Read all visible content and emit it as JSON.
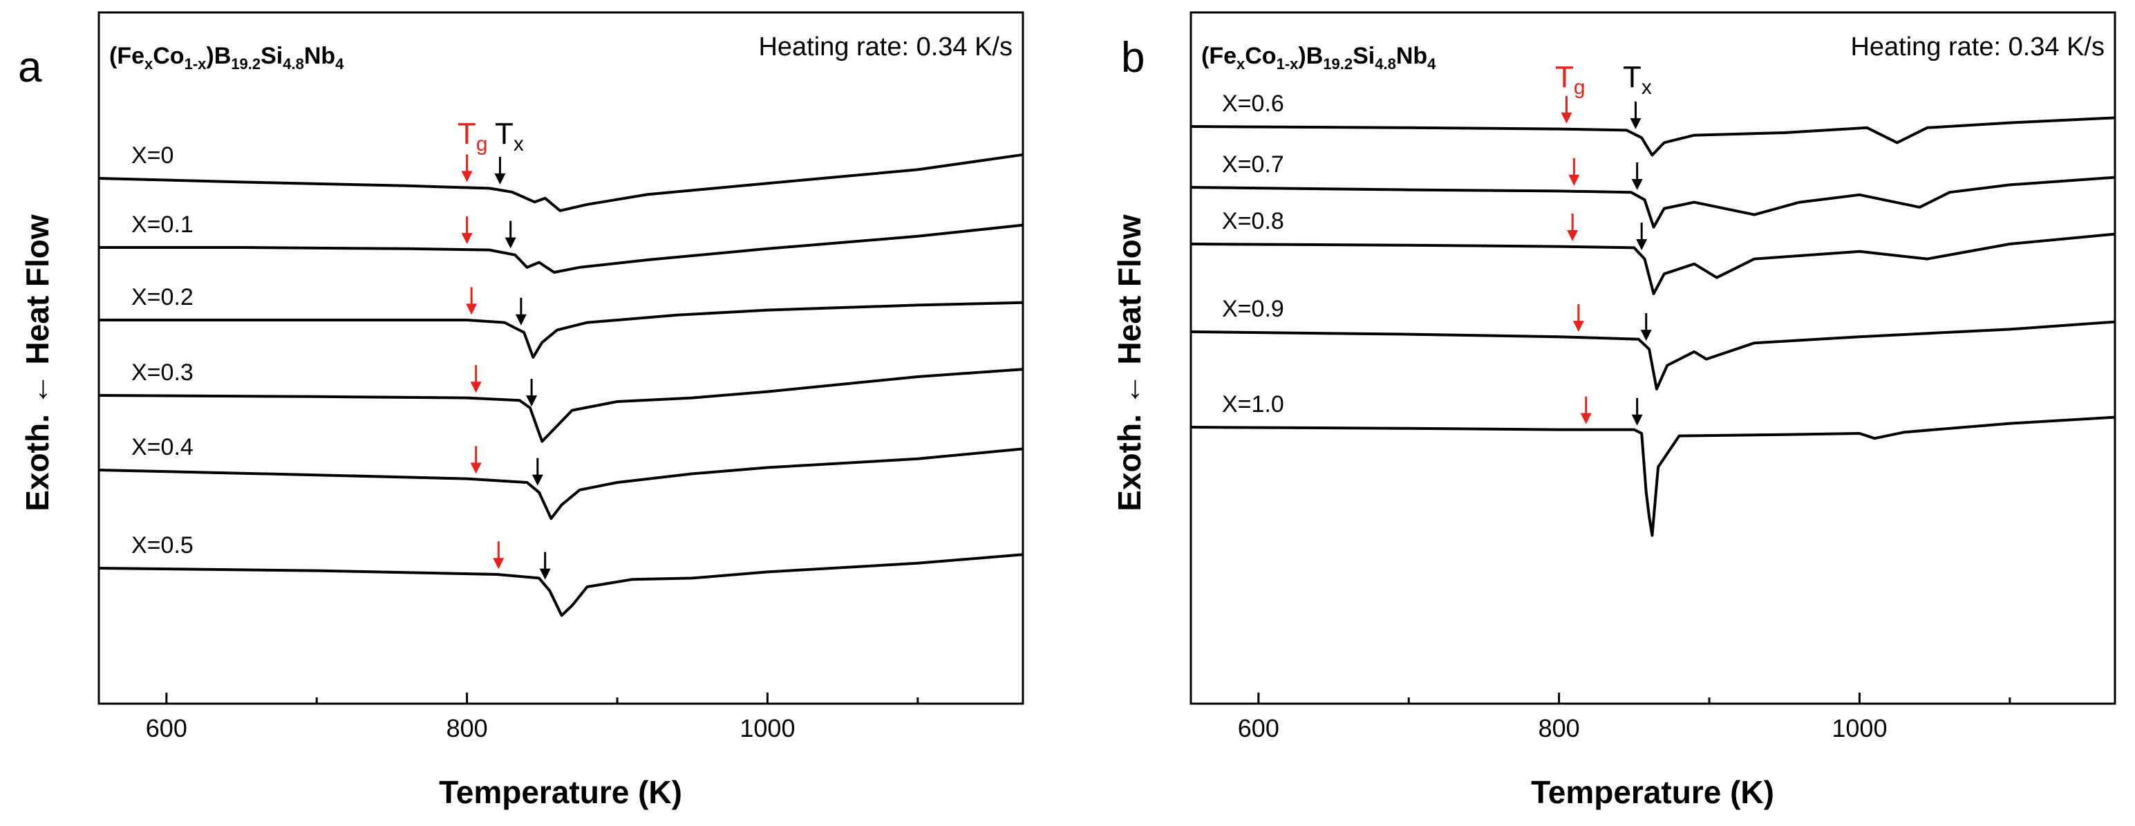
{
  "chart_data": [
    {
      "type": "line",
      "panel": "a",
      "formula": {
        "base": "(Fe",
        "sub1": "x",
        "mid1": "Co",
        "sub2": "1-x",
        "mid2": ")B",
        "sub3": "19.2",
        "mid3": "Si",
        "sub4": "4.8",
        "mid4": "Nb",
        "sub5": "4"
      },
      "heating_rate": "Heating rate: 0.34 K/s",
      "xlabel": "Temperature (K)",
      "ylabel": "Exoth. ← Heat Flow",
      "xlim": [
        555,
        1170
      ],
      "xticks": [
        600,
        800,
        1000
      ],
      "xticks_minor": [
        700,
        900,
        1100
      ],
      "marker_labels": {
        "tg_main": "T",
        "tg_sub": "g",
        "tx_main": "T",
        "tx_sub": "x",
        "tg_color": "#e8211c",
        "tx_color": "#000000"
      },
      "series": [
        {
          "name": "X=0",
          "tg": 800,
          "tx": 822,
          "x": [
            555,
            650,
            760,
            815,
            830,
            845,
            852,
            862,
            880,
            920,
            1000,
            1100,
            1170
          ],
          "y": [
            0.93,
            0.9,
            0.87,
            0.85,
            0.82,
            0.74,
            0.77,
            0.67,
            0.72,
            0.8,
            0.89,
            1.0,
            1.12
          ]
        },
        {
          "name": "X=0.1",
          "tg": 800,
          "tx": 829,
          "x": [
            555,
            650,
            760,
            815,
            832,
            840,
            848,
            858,
            875,
            920,
            1000,
            1100,
            1170
          ],
          "y": [
            0.9,
            0.9,
            0.89,
            0.88,
            0.84,
            0.74,
            0.78,
            0.7,
            0.74,
            0.8,
            0.89,
            0.99,
            1.08
          ]
        },
        {
          "name": "X=0.2",
          "tg": 803,
          "tx": 836,
          "x": [
            555,
            700,
            800,
            825,
            838,
            844,
            850,
            860,
            880,
            940,
            1000,
            1100,
            1170
          ],
          "y": [
            0.9,
            0.9,
            0.9,
            0.88,
            0.8,
            0.6,
            0.72,
            0.82,
            0.88,
            0.94,
            0.98,
            1.02,
            1.04
          ]
        },
        {
          "name": "X=0.3",
          "tg": 806,
          "tx": 843,
          "x": [
            555,
            700,
            800,
            835,
            842,
            850,
            858,
            870,
            900,
            950,
            1000,
            1100,
            1170
          ],
          "y": [
            0.92,
            0.91,
            0.9,
            0.88,
            0.82,
            0.55,
            0.65,
            0.8,
            0.87,
            0.9,
            0.95,
            1.07,
            1.13
          ]
        },
        {
          "name": "X=0.4",
          "tg": 806,
          "tx": 847,
          "x": [
            555,
            700,
            800,
            840,
            848,
            856,
            863,
            875,
            900,
            950,
            1000,
            1100,
            1170
          ],
          "y": [
            0.93,
            0.89,
            0.86,
            0.83,
            0.75,
            0.54,
            0.65,
            0.77,
            0.83,
            0.9,
            0.95,
            1.02,
            1.1
          ]
        },
        {
          "name": "X=0.5",
          "tg": 821,
          "tx": 852,
          "x": [
            555,
            700,
            820,
            848,
            855,
            863,
            870,
            880,
            910,
            950,
            1000,
            1100,
            1170
          ],
          "y": [
            0.93,
            0.91,
            0.88,
            0.85,
            0.75,
            0.55,
            0.63,
            0.78,
            0.84,
            0.85,
            0.9,
            0.97,
            1.04
          ]
        }
      ]
    },
    {
      "type": "line",
      "panel": "b",
      "formula": {
        "base": "(Fe",
        "sub1": "x",
        "mid1": "Co",
        "sub2": "1-x",
        "mid2": ")B",
        "sub3": "19.2",
        "mid3": "Si",
        "sub4": "4.8",
        "mid4": "Nb",
        "sub5": "4"
      },
      "heating_rate": "Heating rate: 0.34 K/s",
      "xlabel": "Temperature (K)",
      "ylabel": "Exoth. ← Heat Flow",
      "xlim": [
        555,
        1170
      ],
      "xticks": [
        600,
        800,
        1000
      ],
      "xticks_minor": [
        700,
        900,
        1100
      ],
      "marker_labels": {
        "tg_main": "T",
        "tg_sub": "g",
        "tx_main": "T",
        "tx_sub": "x",
        "tg_color": "#e8211c",
        "tx_color": "#000000"
      },
      "series": [
        {
          "name": "X=0.6",
          "tg": 805,
          "tx": 851,
          "x": [
            555,
            700,
            800,
            845,
            855,
            862,
            870,
            890,
            950,
            1005,
            1025,
            1045,
            1100,
            1170
          ],
          "y": [
            0.93,
            0.92,
            0.91,
            0.9,
            0.84,
            0.7,
            0.8,
            0.86,
            0.88,
            0.92,
            0.8,
            0.92,
            0.96,
            1.0
          ]
        },
        {
          "name": "X=0.7",
          "tg": 810,
          "tx": 852,
          "x": [
            555,
            700,
            800,
            848,
            857,
            863,
            870,
            890,
            930,
            960,
            1000,
            1040,
            1060,
            1100,
            1170
          ],
          "y": [
            0.92,
            0.9,
            0.89,
            0.88,
            0.82,
            0.6,
            0.75,
            0.8,
            0.7,
            0.8,
            0.86,
            0.76,
            0.88,
            0.94,
            1.0
          ]
        },
        {
          "name": "X=0.8",
          "tg": 809,
          "tx": 855,
          "x": [
            555,
            700,
            800,
            850,
            857,
            863,
            870,
            890,
            905,
            930,
            1000,
            1045,
            1100,
            1170
          ],
          "y": [
            0.92,
            0.91,
            0.9,
            0.89,
            0.8,
            0.52,
            0.68,
            0.76,
            0.65,
            0.8,
            0.86,
            0.8,
            0.92,
            1.0
          ]
        },
        {
          "name": "X=0.9",
          "tg": 813,
          "tx": 858,
          "x": [
            555,
            700,
            800,
            853,
            860,
            865,
            872,
            890,
            898,
            930,
            1000,
            1050,
            1100,
            1170
          ],
          "y": [
            0.92,
            0.9,
            0.88,
            0.86,
            0.78,
            0.46,
            0.65,
            0.76,
            0.7,
            0.83,
            0.88,
            0.91,
            0.94,
            1.0
          ]
        },
        {
          "name": "X=1.0",
          "tg": 818,
          "tx": 852,
          "x": [
            555,
            700,
            800,
            850,
            855,
            858,
            860,
            862,
            866,
            880,
            950,
            1000,
            1010,
            1030,
            1100,
            1170
          ],
          "y": [
            0.92,
            0.91,
            0.9,
            0.9,
            0.87,
            0.4,
            0.2,
            0.05,
            0.6,
            0.85,
            0.86,
            0.87,
            0.83,
            0.88,
            0.95,
            1.0
          ]
        }
      ]
    }
  ]
}
